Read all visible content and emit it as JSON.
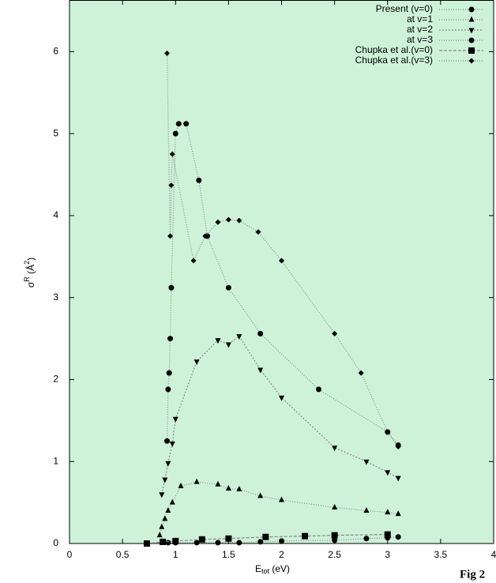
{
  "chart_data": {
    "type": "line",
    "xlabel": [
      "E",
      "tot",
      " (eV)"
    ],
    "ylabel": [
      "σ",
      "R",
      " (Å",
      "2",
      ")"
    ],
    "figure_label": "Fig 2",
    "xlim": [
      0,
      4
    ],
    "xticks": [
      0,
      0.5,
      1,
      1.5,
      2,
      2.5,
      3,
      3.5,
      4
    ],
    "ylim": [
      0,
      6.63
    ],
    "yticks": [
      0,
      1,
      2,
      3,
      4,
      5,
      6
    ],
    "legend": "upper right",
    "background": "#cdf2d8",
    "series": [
      {
        "name": "Present (v=0)",
        "color": "#000000",
        "marker": "circle",
        "x": [
          0.93,
          1.0,
          1.2,
          1.4,
          1.6,
          1.8,
          2.0,
          2.5,
          2.8,
          3.0,
          3.1
        ],
        "values": [
          0.01,
          0.01,
          0.01,
          0.01,
          0.01,
          0.02,
          0.03,
          0.04,
          0.06,
          0.07,
          0.08
        ]
      },
      {
        "name": "at v=1",
        "color": "#000000",
        "marker": "triangle-up",
        "x": [
          0.85,
          0.87,
          0.9,
          0.93,
          0.97,
          1.05,
          1.2,
          1.4,
          1.5,
          1.6,
          1.8,
          2.0,
          2.5,
          2.8,
          3.0,
          3.1
        ],
        "values": [
          0.1,
          0.2,
          0.3,
          0.4,
          0.5,
          0.7,
          0.75,
          0.72,
          0.67,
          0.66,
          0.58,
          0.53,
          0.44,
          0.4,
          0.38,
          0.36
        ]
      },
      {
        "name": "at v=2",
        "color": "#000000",
        "marker": "triangle-down",
        "x": [
          0.87,
          0.9,
          0.93,
          0.97,
          1.0,
          1.2,
          1.4,
          1.5,
          1.6,
          1.8,
          2.0,
          2.5,
          2.8,
          3.0,
          3.1
        ],
        "values": [
          0.6,
          0.78,
          0.98,
          1.22,
          1.52,
          2.22,
          2.48,
          2.43,
          2.53,
          2.12,
          1.78,
          1.17,
          1.0,
          0.87,
          0.8
        ]
      },
      {
        "name": "at v=3",
        "color": "#000000",
        "marker": "circle",
        "x": [
          0.92,
          0.93,
          0.94,
          0.95,
          0.96,
          1.0,
          1.03,
          1.1,
          1.22,
          1.3,
          1.5,
          1.8,
          2.35,
          3.0,
          3.1
        ],
        "values": [
          1.25,
          1.88,
          2.08,
          2.5,
          3.12,
          5.0,
          5.12,
          5.12,
          4.43,
          3.75,
          3.12,
          2.56,
          1.88,
          1.36,
          1.2
        ]
      },
      {
        "name": "Chupka et al.(v=0)",
        "color": "#000000",
        "marker": "square",
        "x": [
          0.73,
          0.88,
          1.0,
          1.25,
          1.5,
          1.85,
          2.22,
          2.5,
          3.0
        ],
        "values": [
          0.0,
          0.02,
          0.03,
          0.05,
          0.06,
          0.08,
          0.09,
          0.1,
          0.11
        ]
      },
      {
        "name": "Chupka et al.(v=3)",
        "color": "#000000",
        "marker": "diamond",
        "x": [
          0.92,
          0.95,
          0.96,
          0.97,
          1.17,
          1.28,
          1.4,
          1.5,
          1.6,
          1.78,
          2.0,
          2.5,
          2.75,
          3.0,
          3.1
        ],
        "values": [
          5.98,
          3.75,
          4.37,
          4.75,
          3.45,
          3.75,
          3.92,
          3.95,
          3.94,
          3.8,
          3.45,
          2.56,
          2.08,
          1.36,
          1.18
        ]
      }
    ]
  }
}
